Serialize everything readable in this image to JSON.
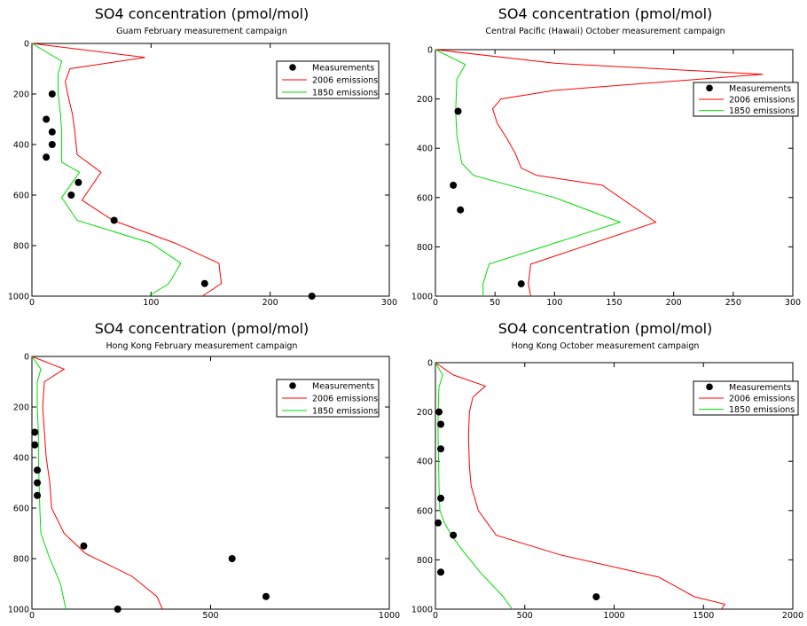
{
  "legend_labels": {
    "measurements": "Measurements",
    "emissions_2006": "2006 emissions",
    "emissions_1850": "1850 emissions"
  },
  "colors": {
    "emissions_2006": "#ff0000",
    "emissions_1850": "#00dd00",
    "measurements": "#000000"
  },
  "chart_data": [
    {
      "type": "line",
      "title": "SO4 concentration (pmol/mol)",
      "subtitle": "Guam February measurement campaign",
      "xlim": [
        0,
        300
      ],
      "ylim": [
        0,
        1000
      ],
      "y_inverted": true,
      "xticks": [
        0,
        100,
        200,
        300
      ],
      "yticks": [
        0,
        200,
        400,
        600,
        800,
        1000
      ],
      "legend_position": "top-right",
      "series": [
        {
          "name": "2006 emissions",
          "points": [
            [
              0,
              0
            ],
            [
              95,
              55
            ],
            [
              32,
              100
            ],
            [
              28,
              150
            ],
            [
              30,
              200
            ],
            [
              34,
              280
            ],
            [
              36,
              350
            ],
            [
              38,
              440
            ],
            [
              58,
              510
            ],
            [
              42,
              620
            ],
            [
              68,
              700
            ],
            [
              120,
              790
            ],
            [
              157,
              870
            ],
            [
              159,
              950
            ],
            [
              143,
              1000
            ]
          ]
        },
        {
          "name": "1850 emissions",
          "points": [
            [
              0,
              0
            ],
            [
              25,
              70
            ],
            [
              22,
              120
            ],
            [
              22,
              200
            ],
            [
              24,
              280
            ],
            [
              25,
              350
            ],
            [
              25,
              470
            ],
            [
              40,
              510
            ],
            [
              25,
              610
            ],
            [
              38,
              700
            ],
            [
              100,
              790
            ],
            [
              125,
              870
            ],
            [
              115,
              950
            ],
            [
              98,
              1000
            ]
          ]
        }
      ],
      "measurements": [
        [
          17,
          200
        ],
        [
          12,
          300
        ],
        [
          17,
          350
        ],
        [
          17,
          400
        ],
        [
          12,
          450
        ],
        [
          39,
          550
        ],
        [
          33,
          600
        ],
        [
          69,
          700
        ],
        [
          145,
          950
        ],
        [
          235,
          1000
        ]
      ]
    },
    {
      "type": "line",
      "title": "SO4 concentration (pmol/mol)",
      "subtitle": "Central Pacific (Hawaii) October measurement campaign",
      "xlim": [
        0,
        300
      ],
      "ylim": [
        0,
        1000
      ],
      "y_inverted": true,
      "xticks": [
        0,
        50,
        100,
        150,
        200,
        250,
        300
      ],
      "yticks": [
        0,
        200,
        400,
        600,
        800,
        1000
      ],
      "legend_position": "top-right",
      "series": [
        {
          "name": "2006 emissions",
          "points": [
            [
              0,
              0
            ],
            [
              100,
              55
            ],
            [
              275,
              100
            ],
            [
              100,
              165
            ],
            [
              55,
              200
            ],
            [
              48,
              240
            ],
            [
              52,
              300
            ],
            [
              60,
              360
            ],
            [
              67,
              420
            ],
            [
              72,
              480
            ],
            [
              85,
              510
            ],
            [
              140,
              550
            ],
            [
              185,
              700
            ],
            [
              80,
              870
            ],
            [
              78,
              950
            ],
            [
              80,
              1000
            ]
          ]
        },
        {
          "name": "1850 emissions",
          "points": [
            [
              0,
              0
            ],
            [
              25,
              60
            ],
            [
              18,
              120
            ],
            [
              17,
              250
            ],
            [
              18,
              350
            ],
            [
              22,
              460
            ],
            [
              32,
              510
            ],
            [
              100,
              600
            ],
            [
              155,
              700
            ],
            [
              45,
              870
            ],
            [
              40,
              950
            ],
            [
              40,
              1000
            ]
          ]
        }
      ],
      "measurements": [
        [
          19,
          250
        ],
        [
          15,
          550
        ],
        [
          21,
          650
        ],
        [
          72,
          950
        ]
      ]
    },
    {
      "type": "line",
      "title": "SO4 concentration (pmol/mol)",
      "subtitle": "Hong Kong February measurement campaign",
      "xlim": [
        0,
        1000
      ],
      "ylim": [
        0,
        1000
      ],
      "y_inverted": true,
      "xticks": [
        0,
        500,
        1000
      ],
      "yticks": [
        0,
        200,
        400,
        600,
        800,
        1000
      ],
      "legend_position": "top-right",
      "series": [
        {
          "name": "2006 emissions",
          "points": [
            [
              0,
              0
            ],
            [
              90,
              50
            ],
            [
              35,
              100
            ],
            [
              30,
              200
            ],
            [
              35,
              300
            ],
            [
              40,
              400
            ],
            [
              50,
              500
            ],
            [
              55,
              600
            ],
            [
              90,
              700
            ],
            [
              150,
              780
            ],
            [
              280,
              870
            ],
            [
              350,
              950
            ],
            [
              365,
              1000
            ]
          ]
        },
        {
          "name": "1850 emissions",
          "points": [
            [
              0,
              0
            ],
            [
              25,
              50
            ],
            [
              15,
              100
            ],
            [
              15,
              200
            ],
            [
              18,
              300
            ],
            [
              18,
              400
            ],
            [
              20,
              500
            ],
            [
              22,
              600
            ],
            [
              25,
              700
            ],
            [
              50,
              800
            ],
            [
              80,
              900
            ],
            [
              95,
              1000
            ]
          ]
        }
      ],
      "measurements": [
        [
          8,
          300
        ],
        [
          8,
          350
        ],
        [
          15,
          450
        ],
        [
          15,
          500
        ],
        [
          15,
          550
        ],
        [
          145,
          750
        ],
        [
          560,
          800
        ],
        [
          655,
          950
        ],
        [
          240,
          1000
        ]
      ]
    },
    {
      "type": "line",
      "title": "SO4 concentration (pmol/mol)",
      "subtitle": "Hong Kong October measurement campaign",
      "xlim": [
        0,
        2000
      ],
      "ylim": [
        0,
        1000
      ],
      "y_inverted": true,
      "xticks": [
        0,
        500,
        1000,
        1500,
        2000
      ],
      "yticks": [
        0,
        200,
        400,
        600,
        800,
        1000
      ],
      "legend_position": "top-right",
      "series": [
        {
          "name": "2006 emissions",
          "points": [
            [
              0,
              0
            ],
            [
              100,
              50
            ],
            [
              280,
              95
            ],
            [
              210,
              140
            ],
            [
              190,
              200
            ],
            [
              185,
              300
            ],
            [
              190,
              420
            ],
            [
              200,
              500
            ],
            [
              240,
              600
            ],
            [
              340,
              700
            ],
            [
              700,
              780
            ],
            [
              1250,
              870
            ],
            [
              1450,
              950
            ],
            [
              1620,
              980
            ],
            [
              1600,
              1000
            ]
          ]
        },
        {
          "name": "1850 emissions",
          "points": [
            [
              0,
              0
            ],
            [
              40,
              50
            ],
            [
              20,
              100
            ],
            [
              15,
              200
            ],
            [
              15,
              300
            ],
            [
              18,
              400
            ],
            [
              20,
              500
            ],
            [
              25,
              600
            ],
            [
              50,
              650
            ],
            [
              90,
              700
            ],
            [
              150,
              760
            ],
            [
              250,
              850
            ],
            [
              380,
              950
            ],
            [
              430,
              1000
            ]
          ]
        }
      ],
      "measurements": [
        [
          20,
          200
        ],
        [
          30,
          250
        ],
        [
          30,
          350
        ],
        [
          30,
          550
        ],
        [
          15,
          650
        ],
        [
          100,
          700
        ],
        [
          30,
          850
        ],
        [
          900,
          950
        ]
      ]
    }
  ]
}
